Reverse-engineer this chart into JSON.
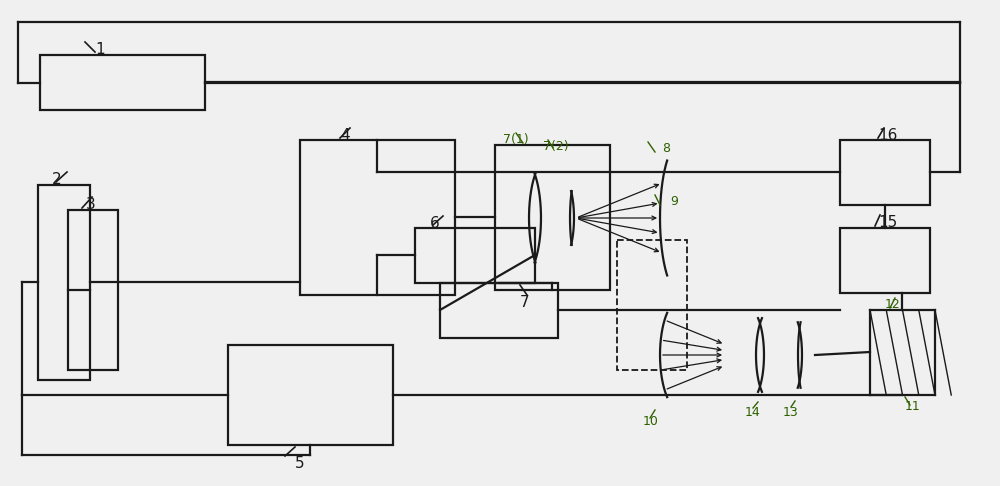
{
  "bg_color": "#f0f0f0",
  "line_color": "#1a1a1a",
  "green_color": "#2e6000",
  "figsize": [
    10.0,
    4.86
  ],
  "dpi": 100,
  "lw": 1.6
}
